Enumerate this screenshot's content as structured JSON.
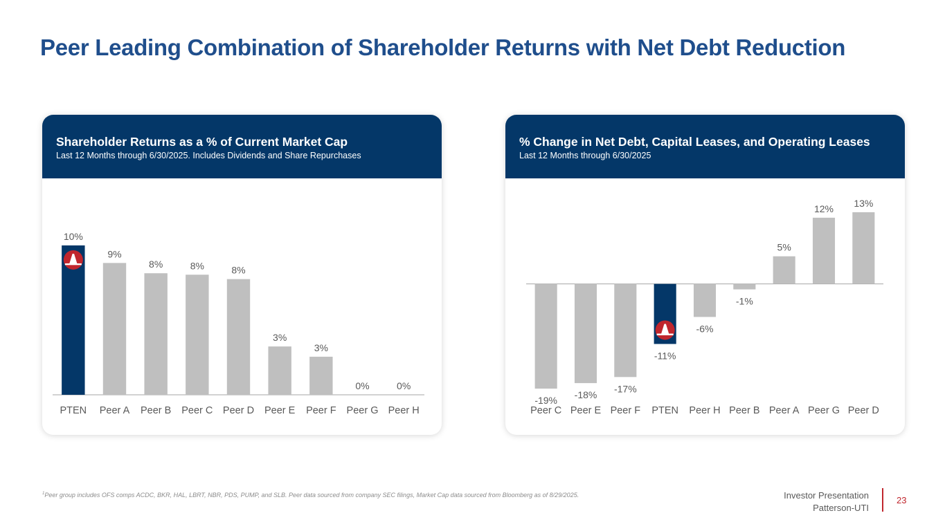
{
  "title": "Peer Leading Combination of Shareholder Returns with Net Debt Reduction",
  "colors": {
    "primary": "#043768",
    "peer": "#bfbfbf",
    "accent": "#c0262d",
    "title": "#1f4e8c"
  },
  "left": {
    "title": "Shareholder Returns as a % of Current Market Cap",
    "subtitle": "Last 12 Months through 6/30/2025. Includes Dividends and Share Repurchases"
  },
  "right": {
    "title": "% Change in Net Debt, Capital Leases, and Operating Leases",
    "subtitle": "Last 12 Months through 6/30/2025"
  },
  "footnote": {
    "marker": "1",
    "text": "Peer group includes OFS comps ACDC, BKR, HAL, LBRT, NBR, PDS, PUMP, and SLB. Peer data sourced from company SEC filings, Market Cap data sourced from Bloomberg as of 8/29/2025."
  },
  "brand": {
    "line1": "Investor Presentation",
    "line2": "Patterson-UTI"
  },
  "page_number": "23",
  "chart_data": [
    {
      "type": "bar",
      "title": "Shareholder Returns as a % of Current Market Cap",
      "categories": [
        "PTEN",
        "Peer A",
        "Peer B",
        "Peer C",
        "Peer D",
        "Peer E",
        "Peer F",
        "Peer G",
        "Peer H"
      ],
      "values": [
        10.2,
        9.0,
        8.3,
        8.2,
        7.9,
        3.3,
        2.6,
        0.0,
        0.0
      ],
      "labels": [
        "10%",
        "9%",
        "8%",
        "8%",
        "8%",
        "3%",
        "3%",
        "0%",
        "0%"
      ],
      "highlight": "PTEN",
      "ylim": [
        0,
        11
      ],
      "grid": false,
      "legend": "none"
    },
    {
      "type": "bar",
      "title": "% Change in Net Debt, Capital Leases, and Operating Leases",
      "categories": [
        "Peer C",
        "Peer E",
        "Peer F",
        "PTEN",
        "Peer H",
        "Peer B",
        "Peer A",
        "Peer G",
        "Peer D"
      ],
      "values": [
        -19.0,
        -18.0,
        -16.9,
        -10.9,
        -6.0,
        -1.0,
        5.0,
        12.0,
        13.0
      ],
      "labels": [
        "-19%",
        "-18%",
        "-17%",
        "-11%",
        "-6%",
        "-1%",
        "5%",
        "12%",
        "13%"
      ],
      "highlight": "PTEN",
      "ylim": [
        -22,
        16
      ],
      "grid": false,
      "legend": "none"
    }
  ]
}
